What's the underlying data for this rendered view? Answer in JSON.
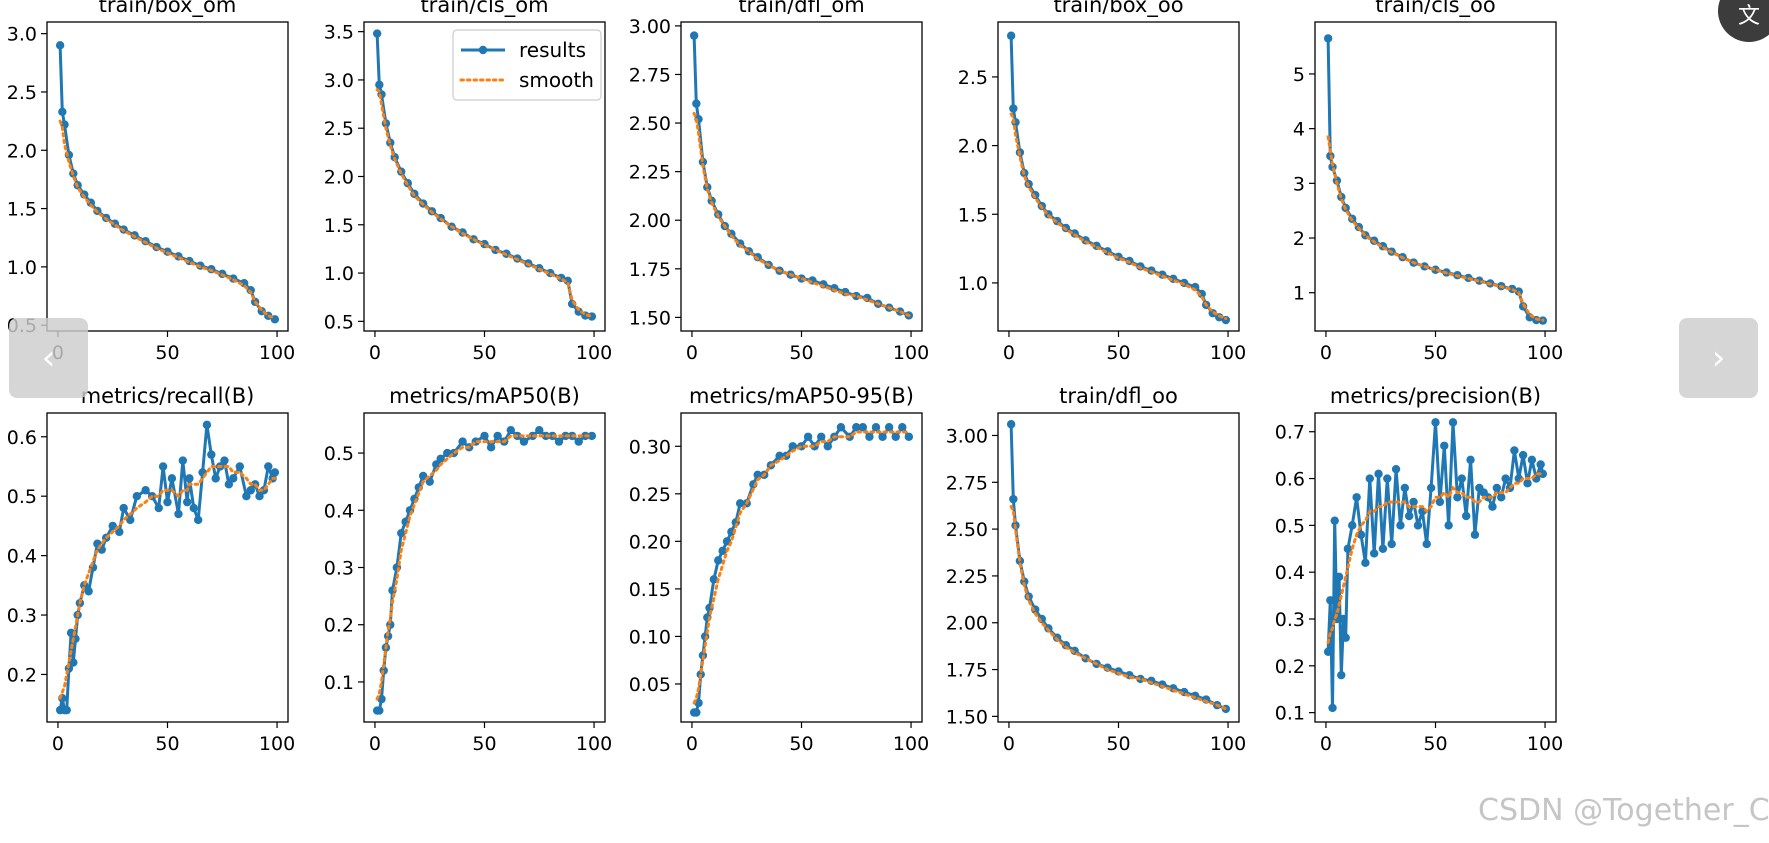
{
  "chart_data": [
    {
      "type": "line",
      "title": "train/box_om",
      "x": [
        1,
        2,
        3,
        5,
        7,
        9,
        12,
        15,
        18,
        22,
        26,
        30,
        35,
        40,
        45,
        50,
        55,
        60,
        65,
        70,
        75,
        80,
        85,
        88,
        90,
        93,
        96,
        99
      ],
      "values": [
        2.9,
        2.33,
        2.22,
        1.96,
        1.8,
        1.7,
        1.62,
        1.55,
        1.48,
        1.42,
        1.37,
        1.32,
        1.27,
        1.22,
        1.17,
        1.13,
        1.09,
        1.05,
        1.01,
        0.98,
        0.94,
        0.9,
        0.86,
        0.8,
        0.7,
        0.62,
        0.58,
        0.55
      ],
      "smooth": [
        2.25,
        2.2,
        2.05,
        1.9,
        1.78,
        1.68,
        1.6,
        1.53,
        1.47,
        1.41,
        1.36,
        1.31,
        1.26,
        1.21,
        1.16,
        1.12,
        1.08,
        1.04,
        1.0,
        0.97,
        0.93,
        0.89,
        0.84,
        0.78,
        0.7,
        0.63,
        0.58,
        0.56
      ],
      "yticks": [
        "0.5",
        "1.0",
        "1.5",
        "2.0",
        "2.5",
        "3.0"
      ],
      "ylim": [
        0.45,
        3.1
      ],
      "xticks": [
        "0",
        "50",
        "100"
      ],
      "xlim": [
        -5,
        105
      ],
      "legend": false
    },
    {
      "type": "line",
      "title": "train/cls_om",
      "x": [
        1,
        2,
        3,
        5,
        7,
        9,
        12,
        15,
        18,
        22,
        26,
        30,
        35,
        40,
        45,
        50,
        55,
        60,
        65,
        70,
        75,
        80,
        85,
        88,
        90,
        93,
        96,
        99
      ],
      "values": [
        3.48,
        2.95,
        2.85,
        2.55,
        2.35,
        2.2,
        2.05,
        1.93,
        1.82,
        1.72,
        1.64,
        1.57,
        1.48,
        1.42,
        1.35,
        1.3,
        1.24,
        1.2,
        1.15,
        1.1,
        1.05,
        1.0,
        0.95,
        0.92,
        0.68,
        0.6,
        0.56,
        0.55
      ],
      "smooth": [
        2.9,
        2.88,
        2.75,
        2.5,
        2.32,
        2.18,
        2.03,
        1.91,
        1.8,
        1.71,
        1.63,
        1.56,
        1.48,
        1.41,
        1.35,
        1.29,
        1.24,
        1.19,
        1.14,
        1.09,
        1.04,
        0.99,
        0.94,
        0.9,
        0.72,
        0.62,
        0.57,
        0.55
      ],
      "yticks": [
        "0.5",
        "1.0",
        "1.5",
        "2.0",
        "2.5",
        "3.0",
        "3.5"
      ],
      "ylim": [
        0.4,
        3.6
      ],
      "xticks": [
        "0",
        "50",
        "100"
      ],
      "xlim": [
        -5,
        105
      ],
      "legend": true
    },
    {
      "type": "line",
      "title": "train/dfl_om",
      "x": [
        1,
        2,
        3,
        5,
        7,
        9,
        12,
        15,
        18,
        22,
        26,
        30,
        35,
        40,
        45,
        50,
        55,
        60,
        65,
        70,
        75,
        80,
        85,
        90,
        95,
        99
      ],
      "values": [
        2.95,
        2.6,
        2.52,
        2.3,
        2.17,
        2.1,
        2.03,
        1.97,
        1.93,
        1.88,
        1.84,
        1.81,
        1.77,
        1.74,
        1.72,
        1.7,
        1.69,
        1.67,
        1.65,
        1.63,
        1.61,
        1.6,
        1.57,
        1.55,
        1.53,
        1.51
      ],
      "smooth": [
        2.55,
        2.52,
        2.45,
        2.28,
        2.16,
        2.09,
        2.02,
        1.97,
        1.92,
        1.87,
        1.84,
        1.8,
        1.77,
        1.74,
        1.72,
        1.7,
        1.68,
        1.66,
        1.64,
        1.62,
        1.61,
        1.59,
        1.57,
        1.55,
        1.53,
        1.51
      ],
      "yticks": [
        "1.50",
        "1.75",
        "2.00",
        "2.25",
        "2.50",
        "2.75",
        "3.00"
      ],
      "ylim": [
        1.43,
        3.02
      ],
      "xticks": [
        "0",
        "50",
        "100"
      ],
      "xlim": [
        -5,
        105
      ],
      "legend": false
    },
    {
      "type": "line",
      "title": "train/box_oo",
      "x": [
        1,
        2,
        3,
        5,
        7,
        9,
        12,
        15,
        18,
        22,
        26,
        30,
        35,
        40,
        45,
        50,
        55,
        60,
        65,
        70,
        75,
        80,
        85,
        88,
        90,
        93,
        96,
        99
      ],
      "values": [
        2.8,
        2.27,
        2.17,
        1.95,
        1.8,
        1.72,
        1.64,
        1.56,
        1.5,
        1.45,
        1.4,
        1.36,
        1.31,
        1.27,
        1.23,
        1.19,
        1.16,
        1.12,
        1.09,
        1.06,
        1.03,
        1.0,
        0.97,
        0.92,
        0.84,
        0.78,
        0.75,
        0.73
      ],
      "smooth": [
        2.23,
        2.2,
        2.08,
        1.92,
        1.78,
        1.7,
        1.62,
        1.55,
        1.49,
        1.44,
        1.39,
        1.35,
        1.3,
        1.26,
        1.22,
        1.18,
        1.15,
        1.11,
        1.08,
        1.05,
        1.02,
        0.99,
        0.95,
        0.9,
        0.84,
        0.79,
        0.76,
        0.74
      ],
      "yticks": [
        "1.0",
        "1.5",
        "2.0",
        "2.5"
      ],
      "ylim": [
        0.65,
        2.9
      ],
      "xticks": [
        "0",
        "50",
        "100"
      ],
      "xlim": [
        -5,
        105
      ],
      "legend": false
    },
    {
      "type": "line",
      "title": "train/cls_oo",
      "x": [
        1,
        2,
        3,
        5,
        7,
        9,
        12,
        15,
        18,
        22,
        26,
        30,
        35,
        40,
        45,
        50,
        55,
        60,
        65,
        70,
        75,
        80,
        85,
        88,
        90,
        93,
        96,
        99
      ],
      "values": [
        5.65,
        3.5,
        3.3,
        3.05,
        2.75,
        2.55,
        2.35,
        2.2,
        2.05,
        1.95,
        1.85,
        1.75,
        1.65,
        1.55,
        1.48,
        1.42,
        1.37,
        1.32,
        1.27,
        1.22,
        1.17,
        1.12,
        1.07,
        1.02,
        0.75,
        0.55,
        0.5,
        0.49
      ],
      "smooth": [
        3.85,
        3.6,
        3.35,
        3.0,
        2.72,
        2.52,
        2.32,
        2.18,
        2.04,
        1.93,
        1.83,
        1.74,
        1.64,
        1.55,
        1.48,
        1.42,
        1.36,
        1.31,
        1.26,
        1.21,
        1.16,
        1.11,
        1.06,
        1.0,
        0.8,
        0.6,
        0.52,
        0.5
      ],
      "yticks": [
        "1",
        "2",
        "3",
        "4",
        "5"
      ],
      "ylim": [
        0.3,
        5.95
      ],
      "xticks": [
        "0",
        "50",
        "100"
      ],
      "xlim": [
        -5,
        105
      ],
      "legend": false
    },
    {
      "type": "line",
      "title": "metrics/recall(B)",
      "x": [
        1,
        2,
        3,
        4,
        5,
        6,
        7,
        8,
        9,
        10,
        12,
        14,
        16,
        18,
        20,
        22,
        25,
        28,
        30,
        33,
        36,
        40,
        43,
        46,
        48,
        50,
        52,
        55,
        57,
        59,
        60,
        62,
        64,
        66,
        68,
        70,
        72,
        74,
        76,
        78,
        80,
        83,
        86,
        88,
        90,
        92,
        94,
        96,
        98,
        99
      ],
      "values": [
        0.14,
        0.16,
        0.14,
        0.14,
        0.21,
        0.27,
        0.22,
        0.26,
        0.3,
        0.32,
        0.35,
        0.34,
        0.38,
        0.42,
        0.41,
        0.43,
        0.45,
        0.44,
        0.48,
        0.46,
        0.5,
        0.51,
        0.5,
        0.48,
        0.55,
        0.49,
        0.53,
        0.47,
        0.56,
        0.49,
        0.53,
        0.48,
        0.46,
        0.54,
        0.62,
        0.57,
        0.53,
        0.55,
        0.56,
        0.52,
        0.53,
        0.55,
        0.5,
        0.51,
        0.52,
        0.5,
        0.51,
        0.55,
        0.53,
        0.54
      ],
      "smooth": [
        0.16,
        0.17,
        0.18,
        0.2,
        0.22,
        0.24,
        0.26,
        0.28,
        0.3,
        0.32,
        0.35,
        0.37,
        0.39,
        0.41,
        0.42,
        0.43,
        0.44,
        0.45,
        0.46,
        0.47,
        0.48,
        0.49,
        0.5,
        0.5,
        0.51,
        0.51,
        0.51,
        0.5,
        0.51,
        0.51,
        0.52,
        0.52,
        0.52,
        0.53,
        0.54,
        0.55,
        0.55,
        0.55,
        0.55,
        0.55,
        0.54,
        0.54,
        0.53,
        0.52,
        0.52,
        0.51,
        0.51,
        0.52,
        0.53,
        0.53
      ],
      "yticks": [
        "0.2",
        "0.3",
        "0.4",
        "0.5",
        "0.6"
      ],
      "ylim": [
        0.12,
        0.64
      ],
      "xticks": [
        "0",
        "50",
        "100"
      ],
      "xlim": [
        -5,
        105
      ],
      "legend": false
    },
    {
      "type": "line",
      "title": "metrics/mAP50(B)",
      "x": [
        1,
        2,
        3,
        4,
        5,
        6,
        7,
        8,
        10,
        12,
        14,
        16,
        18,
        20,
        22,
        25,
        28,
        30,
        33,
        36,
        40,
        43,
        46,
        50,
        53,
        56,
        59,
        62,
        65,
        68,
        72,
        75,
        78,
        81,
        84,
        87,
        90,
        93,
        96,
        99
      ],
      "values": [
        0.05,
        0.05,
        0.07,
        0.12,
        0.16,
        0.18,
        0.2,
        0.26,
        0.3,
        0.36,
        0.38,
        0.4,
        0.42,
        0.44,
        0.46,
        0.45,
        0.48,
        0.49,
        0.5,
        0.5,
        0.52,
        0.51,
        0.52,
        0.53,
        0.51,
        0.53,
        0.52,
        0.54,
        0.53,
        0.52,
        0.53,
        0.54,
        0.53,
        0.53,
        0.52,
        0.53,
        0.53,
        0.52,
        0.53,
        0.53
      ],
      "smooth": [
        0.07,
        0.08,
        0.1,
        0.13,
        0.16,
        0.19,
        0.21,
        0.24,
        0.28,
        0.33,
        0.36,
        0.39,
        0.41,
        0.43,
        0.45,
        0.46,
        0.47,
        0.48,
        0.49,
        0.5,
        0.51,
        0.51,
        0.52,
        0.52,
        0.52,
        0.52,
        0.52,
        0.53,
        0.53,
        0.53,
        0.53,
        0.53,
        0.53,
        0.53,
        0.53,
        0.53,
        0.53,
        0.53,
        0.53,
        0.53
      ],
      "yticks": [
        "0.1",
        "0.2",
        "0.3",
        "0.4",
        "0.5"
      ],
      "ylim": [
        0.03,
        0.57
      ],
      "xticks": [
        "0",
        "50",
        "100"
      ],
      "xlim": [
        -5,
        105
      ],
      "legend": false
    },
    {
      "type": "line",
      "title": "metrics/mAP50-95(B)",
      "x": [
        1,
        2,
        3,
        4,
        5,
        6,
        7,
        8,
        10,
        12,
        14,
        16,
        18,
        20,
        22,
        25,
        28,
        30,
        33,
        36,
        40,
        43,
        46,
        50,
        53,
        56,
        59,
        62,
        65,
        68,
        72,
        75,
        78,
        81,
        84,
        87,
        90,
        93,
        96,
        99
      ],
      "values": [
        0.02,
        0.02,
        0.03,
        0.06,
        0.08,
        0.1,
        0.12,
        0.13,
        0.16,
        0.18,
        0.19,
        0.2,
        0.21,
        0.22,
        0.24,
        0.24,
        0.26,
        0.27,
        0.27,
        0.28,
        0.29,
        0.29,
        0.3,
        0.3,
        0.31,
        0.3,
        0.31,
        0.3,
        0.31,
        0.32,
        0.31,
        0.32,
        0.32,
        0.31,
        0.32,
        0.31,
        0.32,
        0.31,
        0.32,
        0.31
      ],
      "smooth": [
        0.03,
        0.035,
        0.045,
        0.06,
        0.075,
        0.09,
        0.105,
        0.12,
        0.14,
        0.16,
        0.175,
        0.19,
        0.2,
        0.215,
        0.23,
        0.24,
        0.255,
        0.265,
        0.27,
        0.28,
        0.285,
        0.29,
        0.295,
        0.3,
        0.3,
        0.3,
        0.305,
        0.305,
        0.31,
        0.31,
        0.31,
        0.315,
        0.315,
        0.315,
        0.315,
        0.315,
        0.315,
        0.315,
        0.315,
        0.315
      ],
      "yticks": [
        "0.05",
        "0.10",
        "0.15",
        "0.20",
        "0.25",
        "0.30"
      ],
      "ylim": [
        0.01,
        0.335
      ],
      "xticks": [
        "0",
        "50",
        "100"
      ],
      "xlim": [
        -5,
        105
      ],
      "legend": false
    },
    {
      "type": "line",
      "title": "train/dfl_oo",
      "x": [
        1,
        2,
        3,
        5,
        7,
        9,
        12,
        15,
        18,
        22,
        26,
        30,
        35,
        40,
        45,
        50,
        55,
        60,
        65,
        70,
        75,
        80,
        85,
        90,
        95,
        99
      ],
      "values": [
        3.06,
        2.66,
        2.52,
        2.33,
        2.22,
        2.14,
        2.07,
        2.02,
        1.97,
        1.92,
        1.88,
        1.85,
        1.81,
        1.78,
        1.76,
        1.74,
        1.72,
        1.7,
        1.69,
        1.67,
        1.65,
        1.63,
        1.61,
        1.59,
        1.56,
        1.54
      ],
      "smooth": [
        2.62,
        2.6,
        2.5,
        2.32,
        2.2,
        2.12,
        2.05,
        2.0,
        1.96,
        1.91,
        1.87,
        1.84,
        1.81,
        1.78,
        1.75,
        1.73,
        1.71,
        1.7,
        1.68,
        1.66,
        1.64,
        1.62,
        1.6,
        1.58,
        1.56,
        1.54
      ],
      "yticks": [
        "1.50",
        "1.75",
        "2.00",
        "2.25",
        "2.50",
        "2.75",
        "3.00"
      ],
      "ylim": [
        1.47,
        3.12
      ],
      "xticks": [
        "0",
        "50",
        "100"
      ],
      "xlim": [
        -5,
        105
      ],
      "legend": false
    },
    {
      "type": "line",
      "title": "metrics/precision(B)",
      "x": [
        1,
        2,
        3,
        4,
        5,
        6,
        7,
        8,
        9,
        10,
        12,
        14,
        16,
        18,
        20,
        22,
        24,
        26,
        28,
        30,
        32,
        34,
        36,
        38,
        40,
        42,
        44,
        46,
        48,
        50,
        52,
        54,
        56,
        58,
        60,
        62,
        64,
        66,
        68,
        70,
        72,
        74,
        76,
        78,
        80,
        82,
        84,
        86,
        88,
        90,
        92,
        94,
        96,
        98,
        99
      ],
      "values": [
        0.23,
        0.34,
        0.11,
        0.51,
        0.3,
        0.39,
        0.18,
        0.3,
        0.26,
        0.45,
        0.5,
        0.56,
        0.48,
        0.42,
        0.6,
        0.44,
        0.61,
        0.45,
        0.6,
        0.46,
        0.62,
        0.5,
        0.58,
        0.52,
        0.55,
        0.5,
        0.53,
        0.46,
        0.58,
        0.72,
        0.55,
        0.67,
        0.5,
        0.72,
        0.56,
        0.6,
        0.52,
        0.64,
        0.48,
        0.58,
        0.57,
        0.56,
        0.54,
        0.58,
        0.56,
        0.6,
        0.58,
        0.66,
        0.6,
        0.65,
        0.59,
        0.64,
        0.6,
        0.63,
        0.61
      ],
      "smooth": [
        0.25,
        0.27,
        0.28,
        0.3,
        0.31,
        0.33,
        0.35,
        0.37,
        0.39,
        0.41,
        0.45,
        0.48,
        0.5,
        0.51,
        0.53,
        0.53,
        0.54,
        0.54,
        0.55,
        0.55,
        0.55,
        0.55,
        0.55,
        0.54,
        0.54,
        0.54,
        0.54,
        0.53,
        0.54,
        0.56,
        0.56,
        0.57,
        0.56,
        0.58,
        0.57,
        0.57,
        0.56,
        0.56,
        0.55,
        0.55,
        0.56,
        0.56,
        0.56,
        0.57,
        0.57,
        0.57,
        0.58,
        0.59,
        0.59,
        0.6,
        0.6,
        0.6,
        0.61,
        0.61,
        0.61
      ],
      "yticks": [
        "0.1",
        "0.2",
        "0.3",
        "0.4",
        "0.5",
        "0.6",
        "0.7"
      ],
      "ylim": [
        0.08,
        0.74
      ],
      "xticks": [
        "0",
        "50",
        "100"
      ],
      "xlim": [
        -5,
        105
      ],
      "legend": false
    }
  ],
  "legend": {
    "results": "results",
    "smooth": "smooth"
  },
  "colors": {
    "results": "#1f77b4",
    "smooth": "#ff7f0e",
    "axis": "#000000"
  },
  "ui": {
    "prev_icon": "‹",
    "next_icon": "›",
    "translate_icon": "文"
  },
  "watermark": "CSDN @Together_CZ"
}
